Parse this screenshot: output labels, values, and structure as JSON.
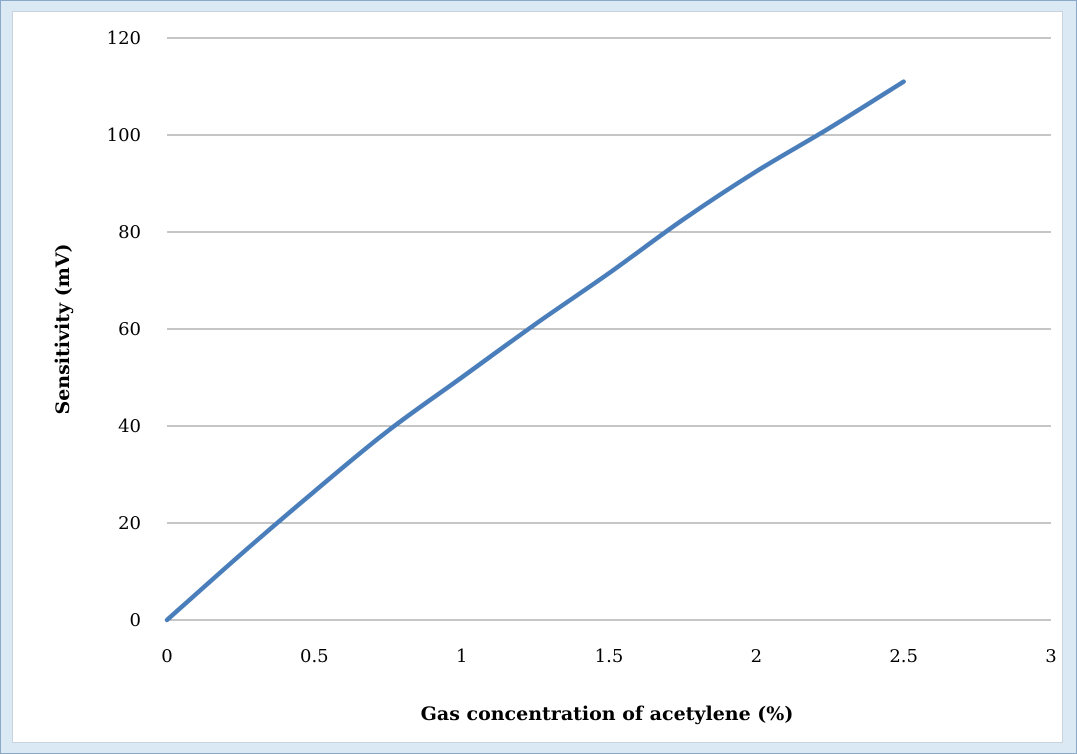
{
  "colors": {
    "background": "#dbe9f5",
    "panel": "#ffffff",
    "gridline": "#8c8c8c",
    "series": "#4a7ebb"
  },
  "chart_data": {
    "type": "line",
    "title": "",
    "xlabel": "Gas concentration of acetylene (%)",
    "ylabel": "Sensitivity (mV)",
    "xlim": [
      0,
      3
    ],
    "ylim": [
      0,
      120
    ],
    "x_ticks": [
      "0",
      "0.5",
      "1",
      "1.5",
      "2",
      "2.5",
      "3"
    ],
    "y_ticks": [
      "0",
      "20",
      "40",
      "60",
      "80",
      "100",
      "120"
    ],
    "grid": "horizontal",
    "legend": "none",
    "series": [
      {
        "x": [
          0,
          0.25,
          0.5,
          0.75,
          1.0,
          1.25,
          1.5,
          1.75,
          2.0,
          2.25,
          2.5
        ],
        "y": [
          0,
          13.5,
          26.5,
          39,
          50,
          61,
          71.5,
          82.5,
          92.5,
          101.5,
          111
        ]
      }
    ]
  }
}
